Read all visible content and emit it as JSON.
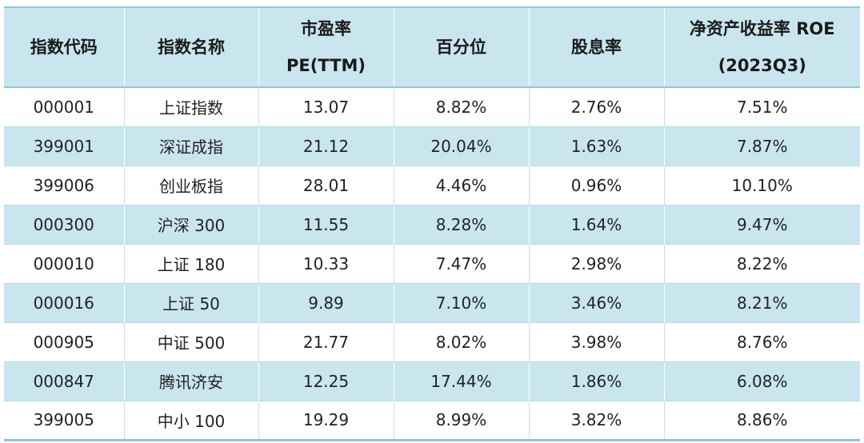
{
  "table": {
    "headers": [
      [
        "指数代码"
      ],
      [
        "指数名称"
      ],
      [
        "市盈率",
        "PE(TTM)"
      ],
      [
        "百分位"
      ],
      [
        "股息率"
      ],
      [
        "净资产收益率 ROE",
        "(2023Q3)"
      ]
    ],
    "rows": [
      [
        "000001",
        "上证指数",
        "13.07",
        "8.82%",
        "2.76%",
        "7.51%"
      ],
      [
        "399001",
        "深证成指",
        "21.12",
        "20.04%",
        "1.63%",
        "7.87%"
      ],
      [
        "399006",
        "创业板指",
        "28.01",
        "4.46%",
        "0.96%",
        "10.10%"
      ],
      [
        "000300",
        "沪深 300",
        "11.55",
        "8.28%",
        "1.64%",
        "9.47%"
      ],
      [
        "000010",
        "上证 180",
        "10.33",
        "7.47%",
        "2.98%",
        "8.22%"
      ],
      [
        "000016",
        "上证 50",
        "9.89",
        "7.10%",
        "3.46%",
        "8.21%"
      ],
      [
        "000905",
        "中证 500",
        "21.77",
        "8.02%",
        "3.98%",
        "8.76%"
      ],
      [
        "000847",
        "腾讯济安",
        "12.25",
        "17.44%",
        "1.86%",
        "6.08%"
      ],
      [
        "399005",
        "中小 100",
        "19.29",
        "8.99%",
        "3.82%",
        "8.86%"
      ]
    ]
  },
  "colors": {
    "header_bg": "#c9e6ef",
    "stripe_bg": "#c9e6ef",
    "border": "#8ec6d8"
  }
}
